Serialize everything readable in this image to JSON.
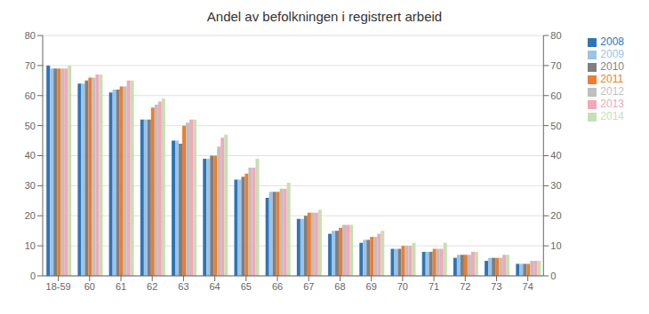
{
  "chart_data": {
    "type": "bar",
    "title": "Andel av befolkningen i registrert arbeid",
    "categories": [
      "18-59",
      "60",
      "61",
      "62",
      "63",
      "64",
      "65",
      "66",
      "67",
      "68",
      "69",
      "70",
      "71",
      "72",
      "73",
      "74"
    ],
    "series": [
      {
        "name": "2008",
        "color": "#2E75B6",
        "values": [
          70,
          64,
          61,
          52,
          45,
          39,
          32,
          26,
          19,
          14,
          11,
          9,
          8,
          6,
          5,
          4
        ]
      },
      {
        "name": "2009",
        "color": "#9DC3E6",
        "values": [
          69,
          64,
          62,
          52,
          45,
          39,
          32,
          28,
          19,
          15,
          12,
          9,
          8,
          7,
          6,
          4
        ]
      },
      {
        "name": "2010",
        "color": "#7F7F7F",
        "values": [
          69,
          65,
          62,
          52,
          44,
          40,
          33,
          28,
          20,
          15,
          12,
          9,
          8,
          7,
          6,
          4
        ]
      },
      {
        "name": "2011",
        "color": "#ED7D31",
        "values": [
          69,
          66,
          63,
          56,
          50,
          40,
          34,
          28,
          21,
          16,
          13,
          10,
          9,
          7,
          6,
          4
        ]
      },
      {
        "name": "2012",
        "color": "#BFBFBF",
        "values": [
          69,
          66,
          63,
          57,
          51,
          43,
          36,
          29,
          21,
          17,
          13,
          10,
          9,
          7,
          6,
          5
        ]
      },
      {
        "name": "2013",
        "color": "#F4A7B9",
        "values": [
          69,
          67,
          65,
          58,
          52,
          46,
          36,
          29,
          21,
          17,
          14,
          10,
          9,
          8,
          7,
          5
        ]
      },
      {
        "name": "2014",
        "color": "#C5E0B4",
        "values": [
          70,
          67,
          65,
          59,
          52,
          47,
          39,
          31,
          22,
          17,
          15,
          11,
          11,
          8,
          7,
          5
        ]
      }
    ],
    "ylim": [
      0,
      80
    ],
    "yticks": [
      0,
      10,
      20,
      30,
      40,
      50,
      60,
      70,
      80
    ],
    "y2lim": [
      0,
      80
    ],
    "y2ticks": [
      0,
      10,
      20,
      30,
      40,
      50,
      60,
      70,
      80
    ],
    "grid": true,
    "legend": "upper right"
  }
}
